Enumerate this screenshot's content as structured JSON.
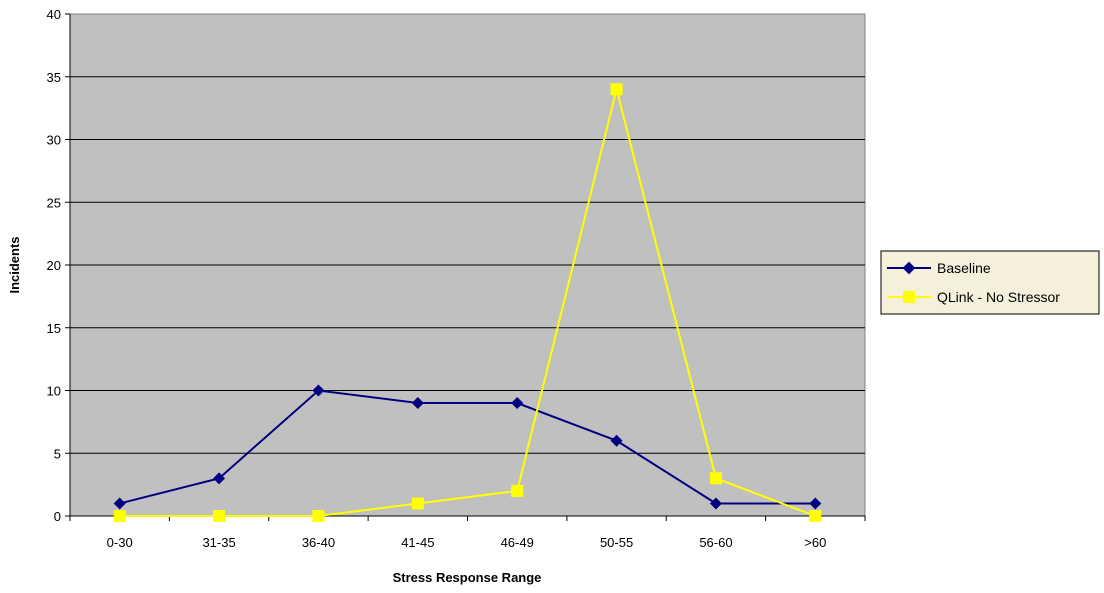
{
  "chart_data": {
    "type": "line",
    "title": "",
    "xlabel": "Stress Response Range",
    "ylabel": "Incidents",
    "categories": [
      "0-30",
      "31-35",
      "36-40",
      "41-45",
      "46-49",
      "50-55",
      "56-60",
      ">60"
    ],
    "ylim": [
      0,
      40
    ],
    "yticks": [
      0,
      5,
      10,
      15,
      20,
      25,
      30,
      35,
      40
    ],
    "grid": true,
    "legend_position": "right",
    "plot_background": "#c0c0c0",
    "legend_background": "#f5f0dc",
    "series": [
      {
        "name": "Baseline",
        "values": [
          1,
          3,
          10,
          9,
          9,
          6,
          1,
          1
        ],
        "color": "#000080",
        "marker": "diamond"
      },
      {
        "name": "QLink - No Stressor",
        "values": [
          0,
          0,
          0,
          1,
          2,
          34,
          3,
          0
        ],
        "color": "#ffff00",
        "marker": "square"
      }
    ]
  }
}
